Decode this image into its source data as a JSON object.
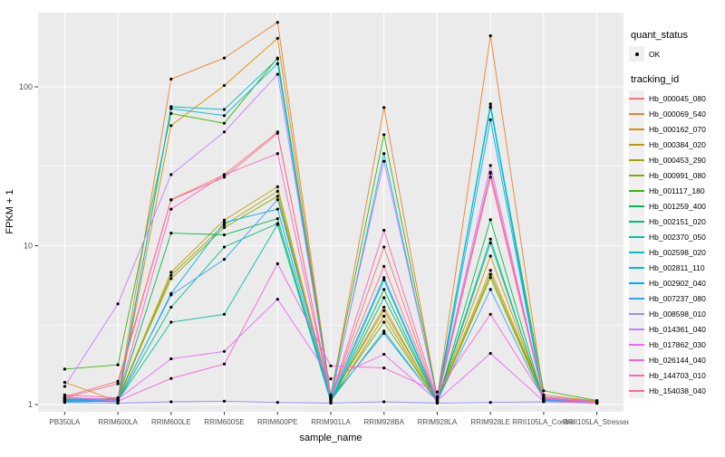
{
  "chart_data": {
    "type": "line",
    "title": "",
    "xlabel": "sample_name",
    "ylabel": "FPKM + 1",
    "y_scale": "log10",
    "y_ticks": [
      1,
      10,
      100
    ],
    "y_minor_ticks": [
      3.1623,
      31.623
    ],
    "ylim_log": [
      -0.046,
      2.468
    ],
    "grid_on": true,
    "panel_bg": "#EBEBEB",
    "grid_color": "#FFFFFF",
    "tick_color": "#333333",
    "tick_label_color": "#4D4D4D",
    "point_color": "#000000",
    "legend_position": "right",
    "categories": [
      "PB350LA",
      "RRIM600LA",
      "RRIM600LE",
      "RRIM600SE",
      "RRIM600PE",
      "RRIM901LA",
      "RRIM928BA",
      "RRIM928LA",
      "RRIM928LE",
      "RRII105LA_Control",
      "RRII105LA_Stressed"
    ],
    "series": [
      {
        "name": "Hb_000045_080",
        "color": "#F8766D",
        "values": [
          1.12,
          1.4,
          19.5,
          28,
          52,
          1.1,
          9.8,
          1.05,
          29,
          1.1,
          1.04
        ]
      },
      {
        "name": "Hb_000069_540",
        "color": "#EA8331",
        "values": [
          1.05,
          1.1,
          112,
          152,
          255,
          1.12,
          74,
          1.1,
          210,
          1.15,
          1.05
        ]
      },
      {
        "name": "Hb_000162_070",
        "color": "#D89000",
        "values": [
          1.38,
          1.05,
          57,
          102,
          202,
          1.08,
          4.1,
          1.04,
          8.6,
          1.08,
          1.03
        ]
      },
      {
        "name": "Hb_000384_020",
        "color": "#C09B00",
        "values": [
          1.1,
          1.08,
          6.8,
          14.5,
          23.5,
          1.1,
          3.9,
          1.06,
          7.0,
          1.12,
          1.05
        ]
      },
      {
        "name": "Hb_000453_290",
        "color": "#A3A500",
        "values": [
          1.08,
          1.06,
          6.5,
          13.5,
          22,
          1.05,
          3.6,
          1.04,
          6.6,
          1.1,
          1.04
        ]
      },
      {
        "name": "Hb_000991_080",
        "color": "#7CAE00",
        "values": [
          1.06,
          1.1,
          6.2,
          13.0,
          20.5,
          1.08,
          3.3,
          1.05,
          6.3,
          1.08,
          1.02
        ]
      },
      {
        "name": "Hb_001117_180",
        "color": "#39B600",
        "values": [
          1.67,
          1.78,
          68,
          59,
          152,
          1.15,
          50,
          1.12,
          75,
          1.22,
          1.06
        ]
      },
      {
        "name": "Hb_001259_400",
        "color": "#00BB4E",
        "values": [
          1.05,
          1.08,
          12,
          11.7,
          14.8,
          1.05,
          5.3,
          1.03,
          14.6,
          1.06,
          1.03
        ]
      },
      {
        "name": "Hb_002151_020",
        "color": "#00BF7D",
        "values": [
          1.08,
          1.05,
          4.1,
          9.8,
          13.8,
          1.04,
          4.7,
          1.05,
          11.0,
          1.05,
          1.02
        ]
      },
      {
        "name": "Hb_002370_050",
        "color": "#00C1A3",
        "values": [
          1.1,
          1.06,
          3.3,
          3.7,
          13.6,
          1.06,
          2.9,
          1.04,
          10.4,
          1.07,
          1.04
        ]
      },
      {
        "name": "Hb_002598_020",
        "color": "#00BFC4",
        "values": [
          1.06,
          1.04,
          75,
          72,
          150,
          1.1,
          6.3,
          1.06,
          78,
          1.09,
          1.03
        ]
      },
      {
        "name": "Hb_002811_110",
        "color": "#00BAE0",
        "values": [
          1.05,
          1.07,
          73,
          66,
          140,
          1.07,
          38,
          1.08,
          74,
          1.06,
          1.02
        ]
      },
      {
        "name": "Hb_002902_040",
        "color": "#00B0F6",
        "values": [
          1.04,
          1.05,
          5.0,
          14.0,
          17.0,
          1.05,
          6.1,
          1.04,
          62,
          1.08,
          1.03
        ]
      },
      {
        "name": "Hb_007237_080",
        "color": "#35A2FF",
        "values": [
          1.07,
          1.06,
          4.9,
          8.2,
          19.5,
          1.09,
          2.8,
          1.05,
          5.3,
          1.07,
          1.02
        ]
      },
      {
        "name": "Hb_008598_010",
        "color": "#9590FF",
        "values": [
          1.03,
          1.02,
          1.04,
          1.05,
          1.03,
          1.02,
          1.04,
          1.02,
          1.03,
          1.04,
          1.02
        ]
      },
      {
        "name": "Hb_014361_040",
        "color": "#C77CFF",
        "values": [
          1.3,
          4.3,
          28,
          52,
          120,
          1.12,
          34,
          1.1,
          32,
          1.12,
          1.04
        ]
      },
      {
        "name": "Hb_017862_030",
        "color": "#E76BF3",
        "values": [
          1.1,
          1.08,
          1.94,
          2.16,
          4.6,
          1.45,
          2.07,
          1.06,
          2.1,
          1.05,
          1.02
        ]
      },
      {
        "name": "Hb_026144_040",
        "color": "#FA62DB",
        "values": [
          1.12,
          1.05,
          1.46,
          1.8,
          7.7,
          1.75,
          1.7,
          1.2,
          3.7,
          1.1,
          1.03
        ]
      },
      {
        "name": "Hb_144703_010",
        "color": "#FF62BC",
        "values": [
          1.15,
          1.1,
          17,
          28,
          38,
          1.1,
          12.5,
          1.08,
          28.5,
          1.1,
          1.04
        ]
      },
      {
        "name": "Hb_154038_040",
        "color": "#FF6A98",
        "values": [
          1.1,
          1.35,
          19.4,
          27,
          51,
          1.12,
          7.4,
          1.06,
          27,
          1.09,
          1.03
        ]
      }
    ]
  },
  "legend": {
    "quant_status_title": "quant_status",
    "quant_status_ok_label": "OK",
    "tracking_id_title": "tracking_id"
  }
}
